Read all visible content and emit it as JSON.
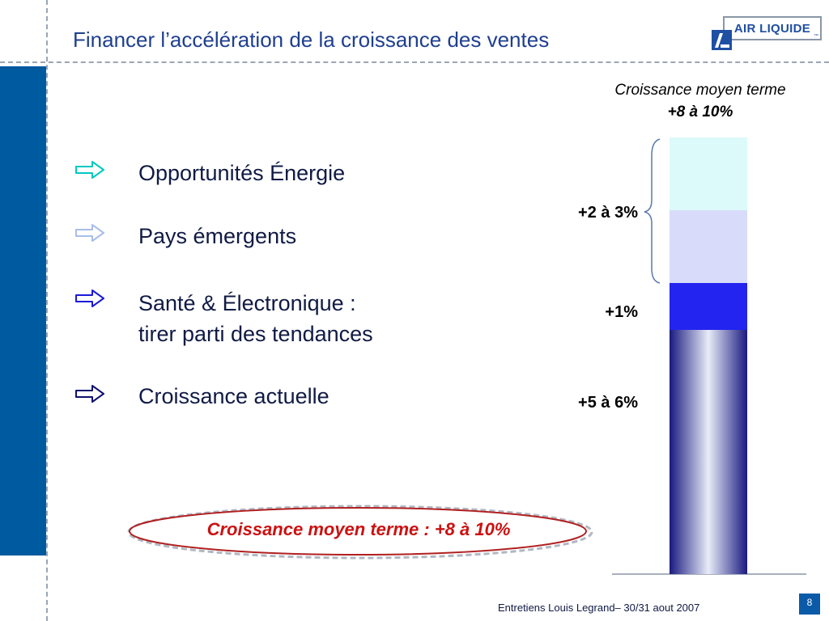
{
  "header": {
    "title": "Financer l’accélération de la croissance des ventes",
    "logo": {
      "text": "AIR LIQUIDE",
      "tm": "™",
      "mark_icon": "air-liquide-logo-mark"
    }
  },
  "bullets": [
    {
      "lines": [
        "Opportunités Énergie"
      ],
      "arrow_color": "#00c8c0",
      "icon": "arrow-right-outline-icon"
    },
    {
      "lines": [
        "Pays émergents"
      ],
      "arrow_color": "#a8bde8",
      "icon": "arrow-right-outline-icon"
    },
    {
      "lines": [
        "Santé & Électronique :",
        "tirer parti des tendances"
      ],
      "arrow_color": "#1a1ad8",
      "icon": "arrow-right-outline-icon"
    },
    {
      "lines": [
        "Croissance actuelle"
      ],
      "arrow_color": "#10106e",
      "icon": "arrow-right-outline-icon"
    }
  ],
  "chart_data": {
    "type": "bar",
    "title": "Croissance moyen terme",
    "subtitle": "+8 à 10%",
    "stack_bottom_to_top": [
      {
        "name": "Croissance actuelle",
        "label": "+5 à 6%",
        "color": "#1a1a80"
      },
      {
        "name": "Santé & Électronique",
        "label": "+1%",
        "color": "#2020f0"
      },
      {
        "name": "Pays émergents",
        "label": "+2 à 3%",
        "color": "#d8dcfa"
      },
      {
        "name": "Opportunités Énergie",
        "label": "+2 à 3%",
        "color": "#dcfafa"
      }
    ],
    "brace_label": "+2 à 3%",
    "label_current": "+5 à 6%",
    "label_health": "+1%"
  },
  "callout": {
    "text": "Croissance moyen terme : +8 à 10%",
    "color": "#cc1111"
  },
  "footer": {
    "text": "Entretiens Louis Legrand– 30/31 aout 2007",
    "page": "8"
  },
  "colors": {
    "title": "#1f3f8f",
    "band": "#005aa0",
    "accent": "#0a5aa8"
  }
}
